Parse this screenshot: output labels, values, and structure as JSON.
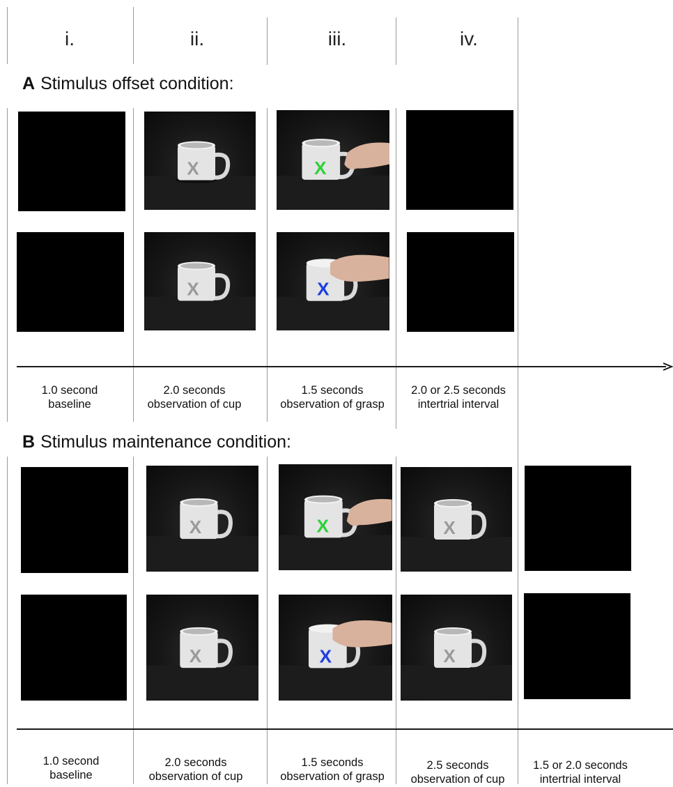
{
  "columns": [
    "i.",
    "ii.",
    "iii.",
    "iv."
  ],
  "section_a": {
    "letter": "A",
    "title": "Stimulus offset condition:",
    "captions": [
      [
        "1.0 second",
        "baseline"
      ],
      [
        "2.0 seconds",
        "observation of cup"
      ],
      [
        "1.5 seconds",
        "observation of grasp"
      ],
      [
        "2.0 or 2.5 seconds",
        "intertrial interval"
      ]
    ]
  },
  "section_b": {
    "letter": "B",
    "title": "Stimulus maintenance condition:",
    "captions": [
      [
        "1.0 second",
        "baseline"
      ],
      [
        "2.0 seconds",
        "observation of cup"
      ],
      [
        "1.5 seconds",
        "observation of grasp"
      ],
      [
        "2.5 seconds",
        "observation of cup"
      ],
      [
        "1.5 or 2.0 seconds",
        "intertrial interval"
      ]
    ]
  },
  "marker_glyph": "X",
  "marker_colors": {
    "neutral": "#9a9a9a",
    "green": "#2fd13a",
    "blue": "#1f3fe0"
  },
  "icons": [
    "black-screen",
    "mug-photo",
    "grasping-hand",
    "timeline-arrow"
  ]
}
